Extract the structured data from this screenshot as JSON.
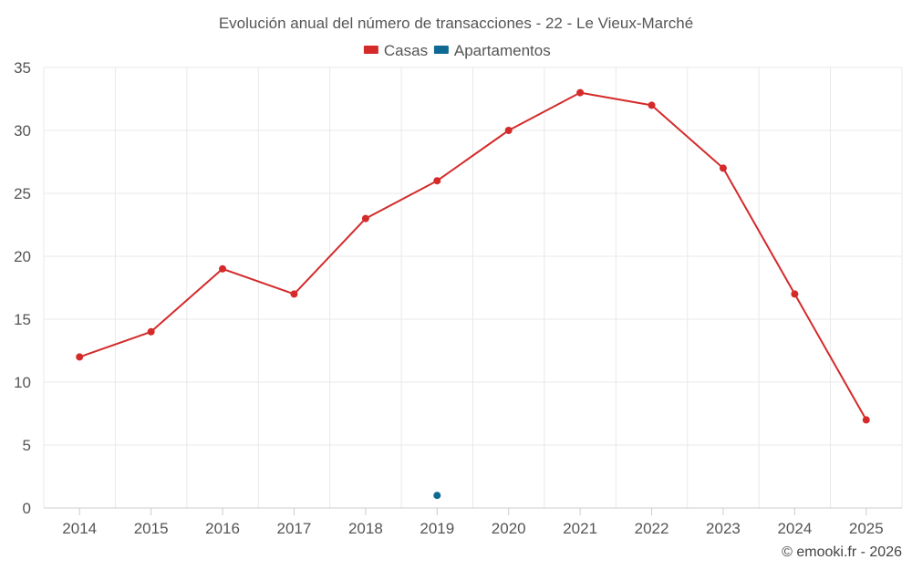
{
  "chart_data": {
    "type": "line",
    "title": "Evolución anual del número de transacciones - 22 - Le Vieux-Marché",
    "xlabel": "",
    "ylabel": "",
    "ylim": [
      0,
      35
    ],
    "yticks": [
      "0",
      "5",
      "10",
      "15",
      "20",
      "25",
      "30",
      "35"
    ],
    "categories": [
      "2014",
      "2015",
      "2016",
      "2017",
      "2018",
      "2019",
      "2020",
      "2021",
      "2022",
      "2023",
      "2024",
      "2025"
    ],
    "grid": true,
    "legend_position": "top-center",
    "series": [
      {
        "name": "Casas",
        "color": "#d42a2a",
        "values": [
          12,
          14,
          19,
          17,
          23,
          26,
          30,
          33,
          32,
          27,
          17,
          7
        ]
      },
      {
        "name": "Apartamentos",
        "color": "#0e6a94",
        "values": [
          null,
          null,
          null,
          null,
          null,
          1,
          null,
          null,
          null,
          null,
          null,
          null
        ]
      }
    ],
    "credit": "© emooki.fr - 2026"
  }
}
